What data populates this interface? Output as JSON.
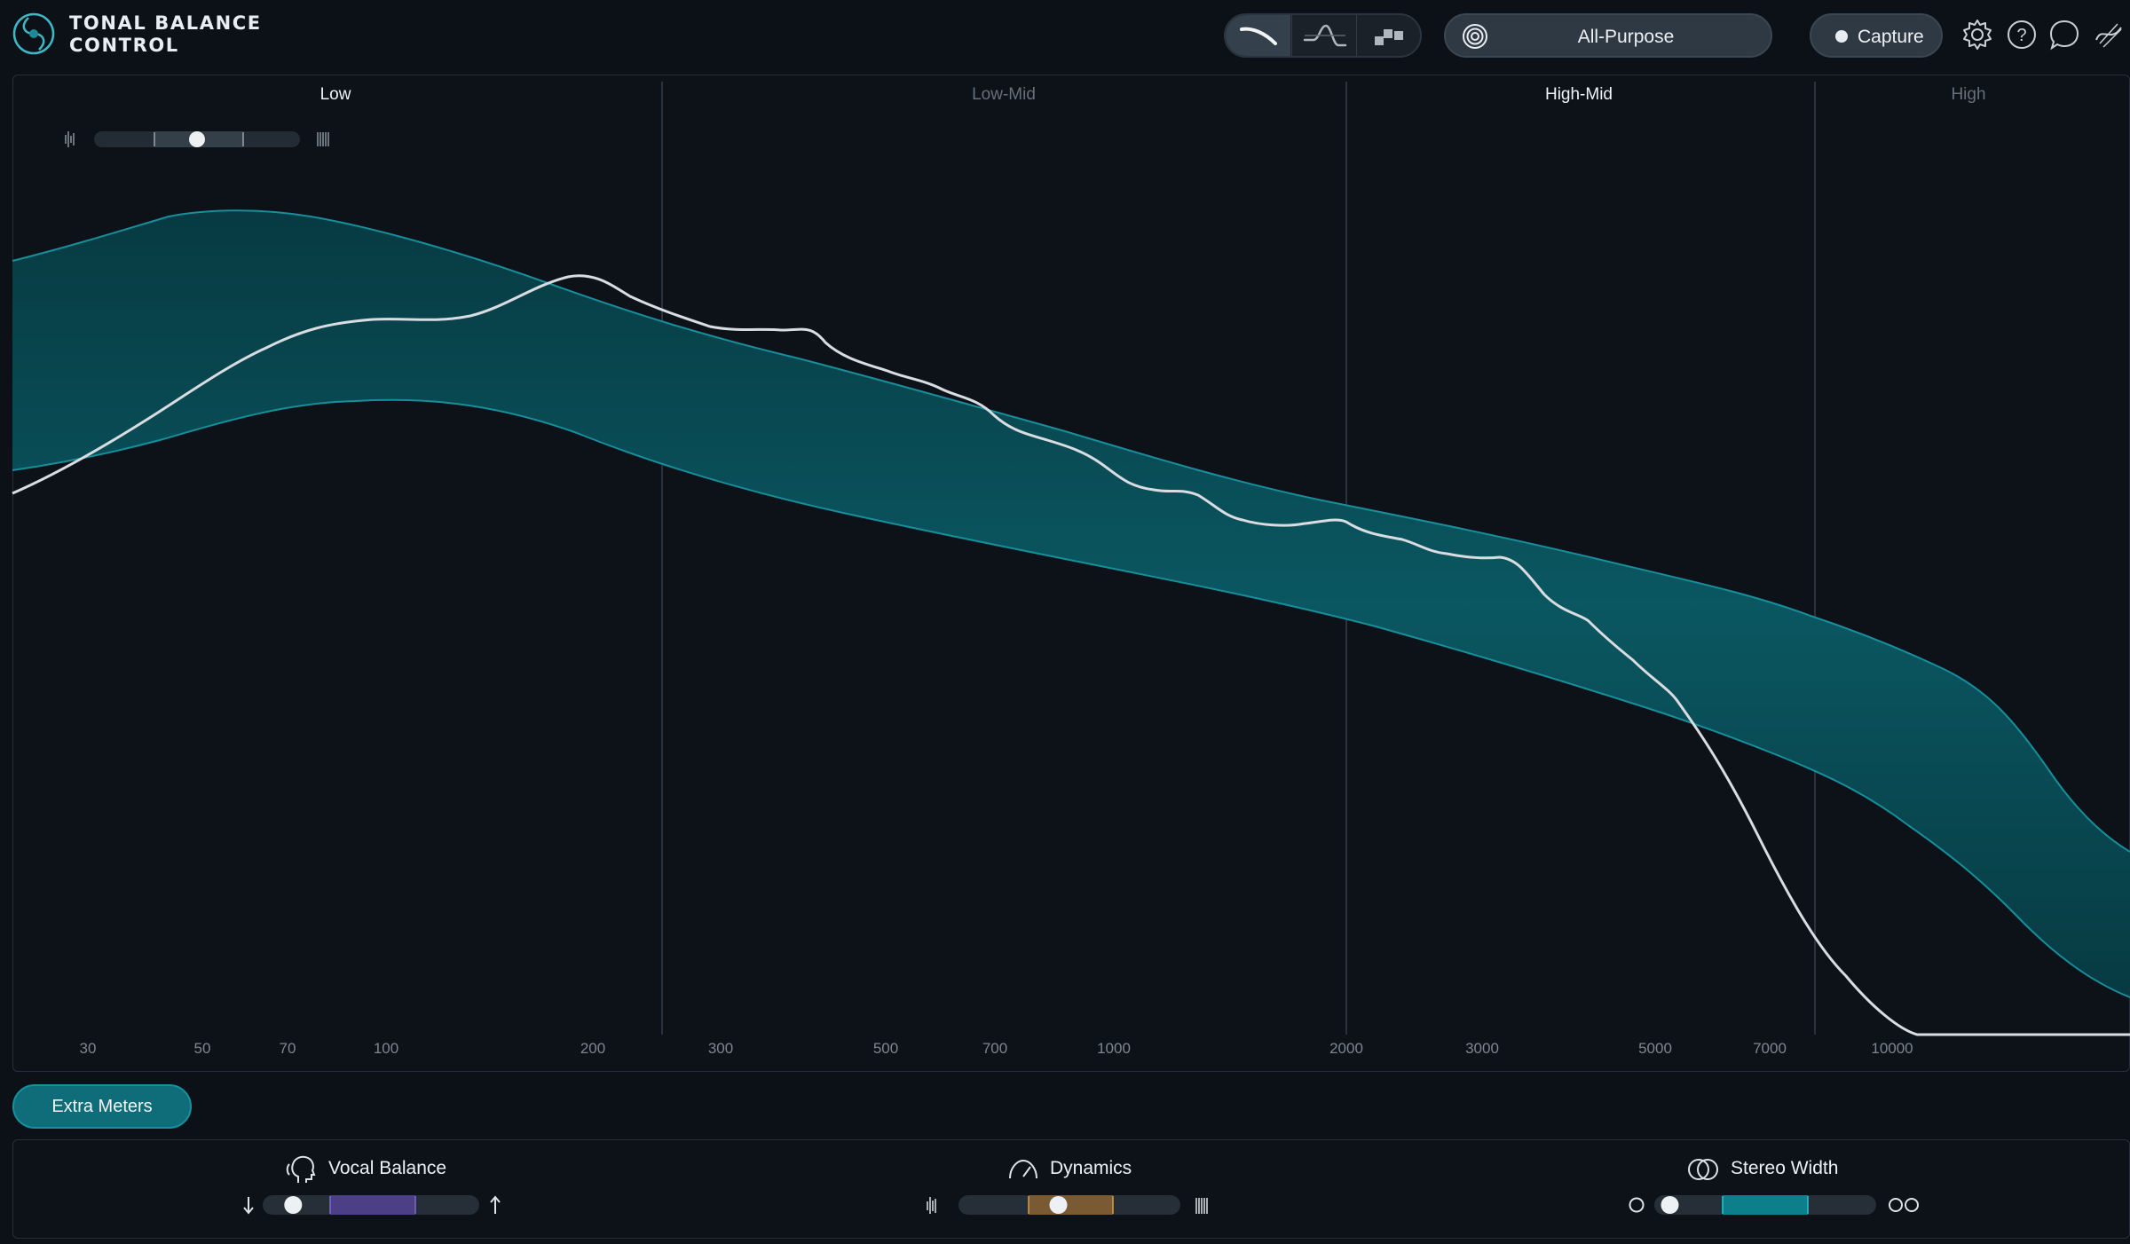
{
  "app": {
    "title_line1": "TONAL BALANCE",
    "title_line2": "CONTROL"
  },
  "header": {
    "view_modes": [
      {
        "name": "broad-view",
        "icon": "broad-curve-icon",
        "selected": true
      },
      {
        "name": "fine-view",
        "icon": "fine-curve-icon",
        "selected": false
      },
      {
        "name": "crest-factor-view",
        "icon": "crest-blocks-icon",
        "selected": false
      }
    ],
    "target": {
      "icon": "target-icon",
      "label": "All-Purpose"
    },
    "capture_label": "Capture",
    "icons": [
      "settings-gear-icon",
      "help-icon",
      "chat-icon",
      "plugin-link-icon"
    ]
  },
  "graph": {
    "bands": [
      {
        "label": "Low",
        "active": true
      },
      {
        "label": "Low-Mid",
        "active": false
      },
      {
        "label": "High-Mid",
        "active": true
      },
      {
        "label": "High",
        "active": false
      }
    ],
    "freq_ticks": [
      "30",
      "50",
      "70",
      "100",
      "200",
      "300",
      "500",
      "700",
      "1000",
      "2000",
      "3000",
      "5000",
      "7000",
      "10000"
    ],
    "smoothing_level": 0.5,
    "colors": {
      "band": "#0b6e7a",
      "band_edge": "#1b9aa8",
      "curve": "#d9dde1"
    }
  },
  "extra_meters_label": "Extra Meters",
  "meters": {
    "vocal": {
      "title": "Vocal Balance",
      "icon": "vocal-head-icon",
      "level": 0.1,
      "color": "#4c3f86"
    },
    "dynamics": {
      "title": "Dynamics",
      "icon": "speedometer-icon",
      "level": 0.45,
      "color": "#7a5a33"
    },
    "stereo": {
      "title": "Stereo Width",
      "icon": "stereo-circles-icon",
      "level": 0.07,
      "color": "#0d7f8b"
    }
  }
}
